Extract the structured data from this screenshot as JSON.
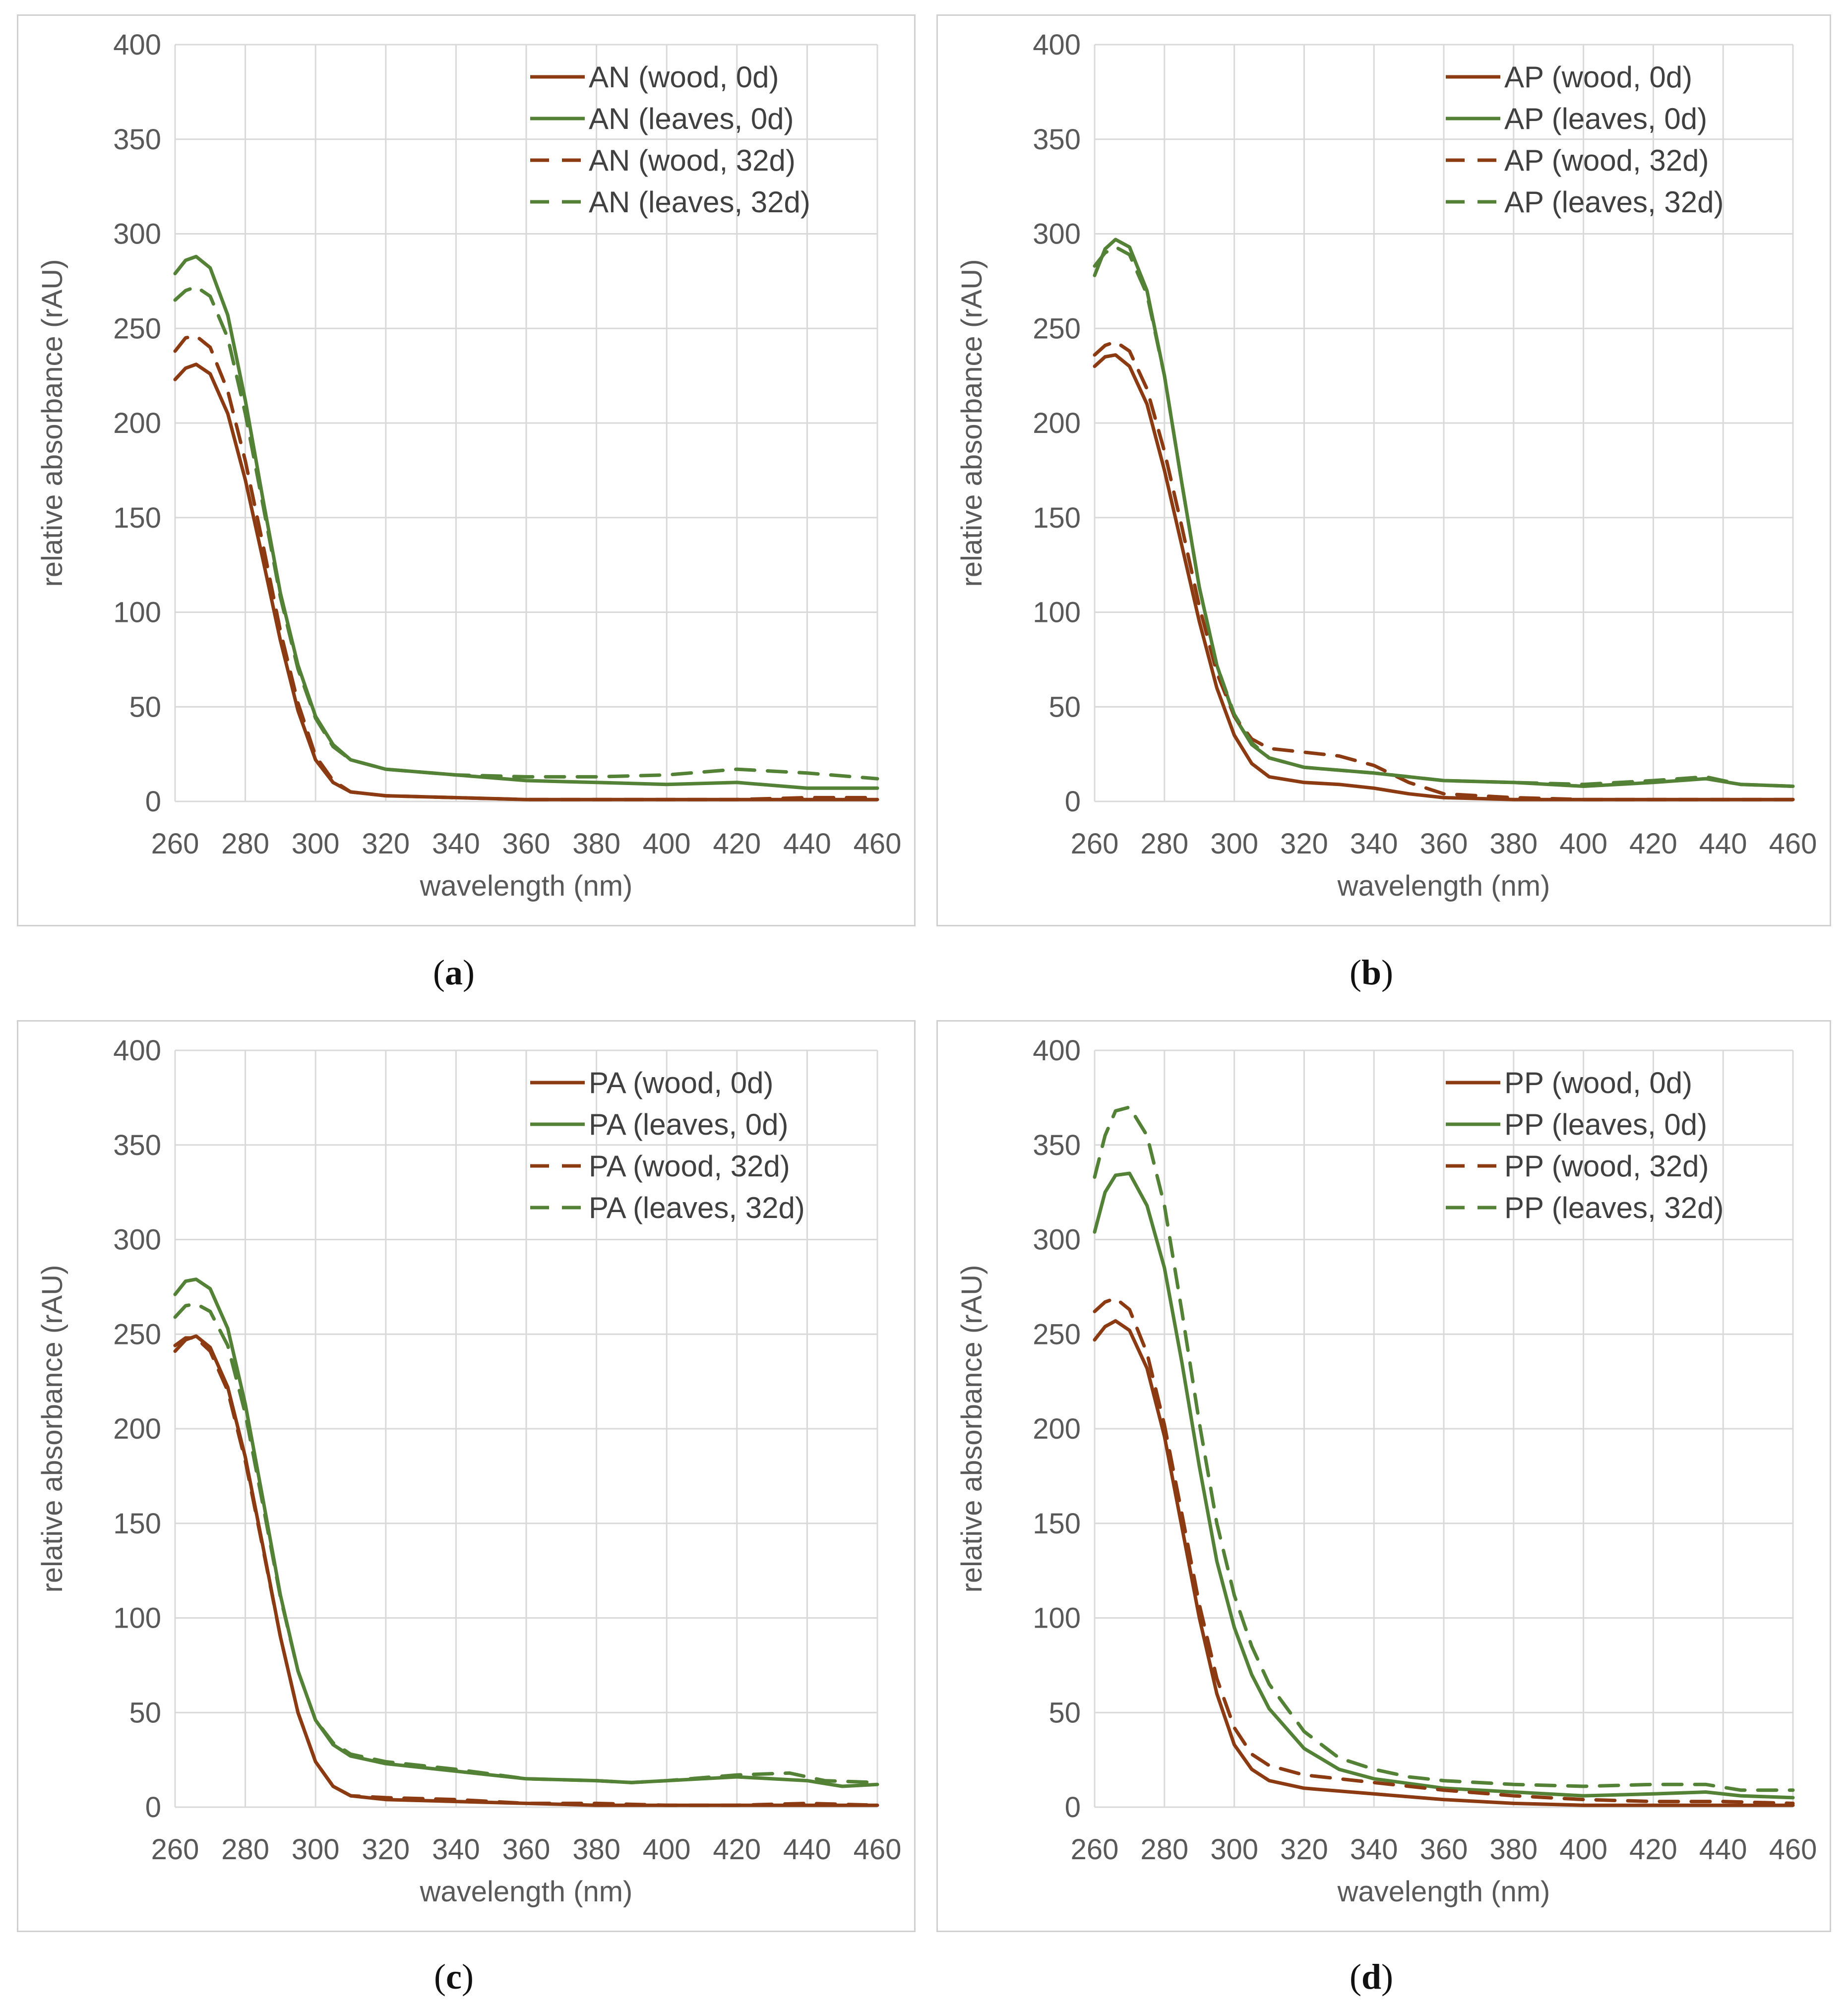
{
  "colors": {
    "wood": "#8b3a12",
    "leaves": "#538135",
    "grid": "#d9d9d9",
    "text": "#595959"
  },
  "chart_data": [
    {
      "panel": "a",
      "caption": "a",
      "type": "line",
      "xlabel": "wavelength (nm)",
      "ylabel": "relative absorbance (rAU)",
      "xlim": [
        260,
        460
      ],
      "ylim": [
        0,
        400
      ],
      "xticks": [
        260,
        280,
        300,
        320,
        340,
        360,
        380,
        400,
        420,
        440,
        460
      ],
      "yticks": [
        0,
        50,
        100,
        150,
        200,
        250,
        300,
        350,
        400
      ],
      "legend_position": "top-right",
      "series": [
        {
          "name": "AN (wood, 0d)",
          "color": "wood",
          "dash": false,
          "x": [
            260,
            263,
            266,
            270,
            275,
            280,
            285,
            290,
            295,
            300,
            305,
            310,
            320,
            340,
            360,
            380,
            400,
            420,
            440,
            460
          ],
          "y": [
            223,
            229,
            231,
            226,
            205,
            170,
            128,
            85,
            48,
            22,
            10,
            5,
            3,
            2,
            1,
            1,
            1,
            1,
            1,
            1
          ]
        },
        {
          "name": "AN (leaves, 0d)",
          "color": "leaves",
          "dash": false,
          "x": [
            260,
            263,
            266,
            270,
            275,
            280,
            285,
            290,
            295,
            300,
            305,
            310,
            320,
            340,
            360,
            380,
            400,
            420,
            440,
            460
          ],
          "y": [
            279,
            286,
            288,
            282,
            257,
            212,
            160,
            110,
            72,
            45,
            30,
            22,
            17,
            14,
            11,
            10,
            9,
            10,
            7,
            7
          ]
        },
        {
          "name": "AN (wood, 32d)",
          "color": "wood",
          "dash": true,
          "x": [
            260,
            263,
            266,
            270,
            275,
            280,
            285,
            290,
            295,
            300,
            305,
            310,
            320,
            340,
            360,
            380,
            400,
            420,
            440,
            460
          ],
          "y": [
            238,
            245,
            246,
            240,
            217,
            180,
            136,
            90,
            52,
            24,
            11,
            5,
            3,
            2,
            1,
            1,
            1,
            1,
            2,
            2
          ]
        },
        {
          "name": "AN (leaves, 32d)",
          "color": "leaves",
          "dash": true,
          "x": [
            260,
            263,
            266,
            270,
            275,
            280,
            285,
            290,
            295,
            300,
            305,
            310,
            320,
            340,
            360,
            380,
            400,
            420,
            440,
            460
          ],
          "y": [
            265,
            270,
            272,
            267,
            245,
            205,
            157,
            108,
            70,
            44,
            29,
            22,
            17,
            14,
            13,
            13,
            14,
            17,
            15,
            12
          ]
        }
      ]
    },
    {
      "panel": "b",
      "caption": "b",
      "type": "line",
      "xlabel": "wavelength (nm)",
      "ylabel": "relative absorbance (rAU)",
      "xlim": [
        260,
        460
      ],
      "ylim": [
        0,
        400
      ],
      "xticks": [
        260,
        280,
        300,
        320,
        340,
        360,
        380,
        400,
        420,
        440,
        460
      ],
      "yticks": [
        0,
        50,
        100,
        150,
        200,
        250,
        300,
        350,
        400
      ],
      "legend_position": "top-right",
      "series": [
        {
          "name": "AP (wood, 0d)",
          "color": "wood",
          "dash": false,
          "x": [
            260,
            263,
            266,
            270,
            275,
            280,
            285,
            290,
            295,
            300,
            305,
            310,
            320,
            330,
            340,
            350,
            360,
            380,
            400,
            420,
            440,
            460
          ],
          "y": [
            230,
            235,
            236,
            230,
            210,
            175,
            135,
            95,
            60,
            35,
            20,
            13,
            10,
            9,
            7,
            4,
            2,
            1,
            1,
            1,
            1,
            1
          ]
        },
        {
          "name": "AP (leaves, 0d)",
          "color": "leaves",
          "dash": false,
          "x": [
            260,
            263,
            266,
            270,
            275,
            280,
            285,
            290,
            295,
            300,
            305,
            310,
            320,
            340,
            360,
            380,
            400,
            420,
            435,
            445,
            460
          ],
          "y": [
            278,
            292,
            297,
            293,
            270,
            225,
            168,
            113,
            72,
            45,
            30,
            23,
            18,
            15,
            11,
            10,
            8,
            10,
            12,
            9,
            8
          ]
        },
        {
          "name": "AP (wood, 32d)",
          "color": "wood",
          "dash": true,
          "x": [
            260,
            263,
            266,
            270,
            275,
            280,
            285,
            290,
            295,
            300,
            305,
            310,
            320,
            330,
            340,
            350,
            360,
            380,
            400,
            420,
            440,
            460
          ],
          "y": [
            236,
            241,
            243,
            238,
            218,
            185,
            145,
            103,
            68,
            45,
            33,
            28,
            26,
            24,
            19,
            10,
            4,
            2,
            1,
            1,
            1,
            1
          ]
        },
        {
          "name": "AP (leaves, 32d)",
          "color": "leaves",
          "dash": true,
          "x": [
            260,
            263,
            266,
            270,
            275,
            280,
            285,
            290,
            295,
            300,
            305,
            310,
            320,
            340,
            360,
            380,
            400,
            420,
            435,
            445,
            460
          ],
          "y": [
            283,
            290,
            293,
            289,
            268,
            225,
            168,
            113,
            72,
            46,
            31,
            23,
            18,
            15,
            11,
            10,
            9,
            11,
            13,
            9,
            8
          ]
        }
      ]
    },
    {
      "panel": "c",
      "caption": "c",
      "type": "line",
      "xlabel": "wavelength (nm)",
      "ylabel": "relative absorbance (rAU)",
      "xlim": [
        260,
        460
      ],
      "ylim": [
        0,
        400
      ],
      "xticks": [
        260,
        280,
        300,
        320,
        340,
        360,
        380,
        400,
        420,
        440,
        460
      ],
      "yticks": [
        0,
        50,
        100,
        150,
        200,
        250,
        300,
        350,
        400
      ],
      "legend_position": "top-right",
      "series": [
        {
          "name": "PA (wood, 0d)",
          "color": "wood",
          "dash": false,
          "x": [
            260,
            263,
            266,
            270,
            275,
            280,
            285,
            290,
            295,
            300,
            305,
            310,
            320,
            340,
            360,
            380,
            400,
            420,
            440,
            460
          ],
          "y": [
            241,
            247,
            249,
            243,
            222,
            185,
            138,
            90,
            50,
            24,
            11,
            6,
            4,
            3,
            2,
            1,
            1,
            1,
            1,
            1
          ]
        },
        {
          "name": "PA (leaves, 0d)",
          "color": "leaves",
          "dash": false,
          "x": [
            260,
            263,
            266,
            270,
            275,
            280,
            285,
            290,
            295,
            300,
            305,
            310,
            320,
            340,
            360,
            380,
            390,
            400,
            420,
            440,
            450,
            460
          ],
          "y": [
            271,
            278,
            279,
            274,
            253,
            213,
            163,
            112,
            72,
            46,
            33,
            27,
            23,
            19,
            15,
            14,
            13,
            14,
            16,
            14,
            11,
            12
          ]
        },
        {
          "name": "PA (wood, 32d)",
          "color": "wood",
          "dash": true,
          "x": [
            260,
            263,
            266,
            270,
            275,
            280,
            285,
            290,
            295,
            300,
            305,
            310,
            320,
            340,
            360,
            380,
            400,
            420,
            440,
            460
          ],
          "y": [
            244,
            248,
            248,
            241,
            220,
            183,
            137,
            90,
            50,
            24,
            11,
            6,
            5,
            4,
            2,
            2,
            1,
            1,
            2,
            1
          ]
        },
        {
          "name": "PA (leaves, 32d)",
          "color": "leaves",
          "dash": true,
          "x": [
            260,
            263,
            266,
            270,
            275,
            280,
            285,
            290,
            295,
            300,
            305,
            310,
            320,
            340,
            360,
            380,
            390,
            400,
            420,
            435,
            445,
            460
          ],
          "y": [
            259,
            265,
            266,
            262,
            244,
            208,
            160,
            111,
            72,
            46,
            34,
            28,
            24,
            20,
            15,
            14,
            13,
            14,
            17,
            18,
            14,
            13
          ]
        }
      ]
    },
    {
      "panel": "d",
      "caption": "d",
      "type": "line",
      "xlabel": "wavelength (nm)",
      "ylabel": "relative absorbance (rAU)",
      "xlim": [
        260,
        460
      ],
      "ylim": [
        0,
        400
      ],
      "xticks": [
        260,
        280,
        300,
        320,
        340,
        360,
        380,
        400,
        420,
        440,
        460
      ],
      "yticks": [
        0,
        50,
        100,
        150,
        200,
        250,
        300,
        350,
        400
      ],
      "legend_position": "top-right",
      "series": [
        {
          "name": "PP (wood, 0d)",
          "color": "wood",
          "dash": false,
          "x": [
            260,
            263,
            266,
            270,
            275,
            280,
            285,
            290,
            295,
            300,
            305,
            310,
            320,
            340,
            360,
            380,
            400,
            420,
            440,
            460
          ],
          "y": [
            247,
            254,
            257,
            252,
            232,
            196,
            148,
            100,
            60,
            33,
            20,
            14,
            10,
            7,
            4,
            2,
            1,
            1,
            1,
            1
          ]
        },
        {
          "name": "PP (leaves, 0d)",
          "color": "leaves",
          "dash": false,
          "x": [
            260,
            263,
            266,
            270,
            275,
            280,
            285,
            290,
            295,
            300,
            305,
            310,
            320,
            330,
            340,
            360,
            380,
            400,
            420,
            435,
            445,
            460
          ],
          "y": [
            304,
            325,
            334,
            335,
            318,
            285,
            235,
            180,
            130,
            95,
            70,
            52,
            31,
            20,
            15,
            10,
            8,
            6,
            7,
            8,
            6,
            5
          ]
        },
        {
          "name": "PP (wood, 32d)",
          "color": "wood",
          "dash": true,
          "x": [
            260,
            263,
            266,
            270,
            275,
            280,
            285,
            290,
            295,
            300,
            305,
            310,
            320,
            340,
            360,
            380,
            400,
            420,
            440,
            460
          ],
          "y": [
            262,
            267,
            269,
            263,
            240,
            202,
            155,
            107,
            68,
            42,
            28,
            22,
            17,
            13,
            9,
            6,
            4,
            3,
            3,
            2
          ]
        },
        {
          "name": "PP (leaves, 32d)",
          "color": "leaves",
          "dash": true,
          "x": [
            260,
            263,
            266,
            270,
            275,
            280,
            285,
            290,
            295,
            300,
            305,
            310,
            320,
            330,
            340,
            350,
            360,
            380,
            400,
            420,
            435,
            445,
            460
          ],
          "y": [
            333,
            355,
            368,
            370,
            355,
            318,
            262,
            203,
            150,
            112,
            85,
            65,
            40,
            26,
            20,
            16,
            14,
            12,
            11,
            12,
            12,
            9,
            9
          ]
        }
      ]
    }
  ]
}
